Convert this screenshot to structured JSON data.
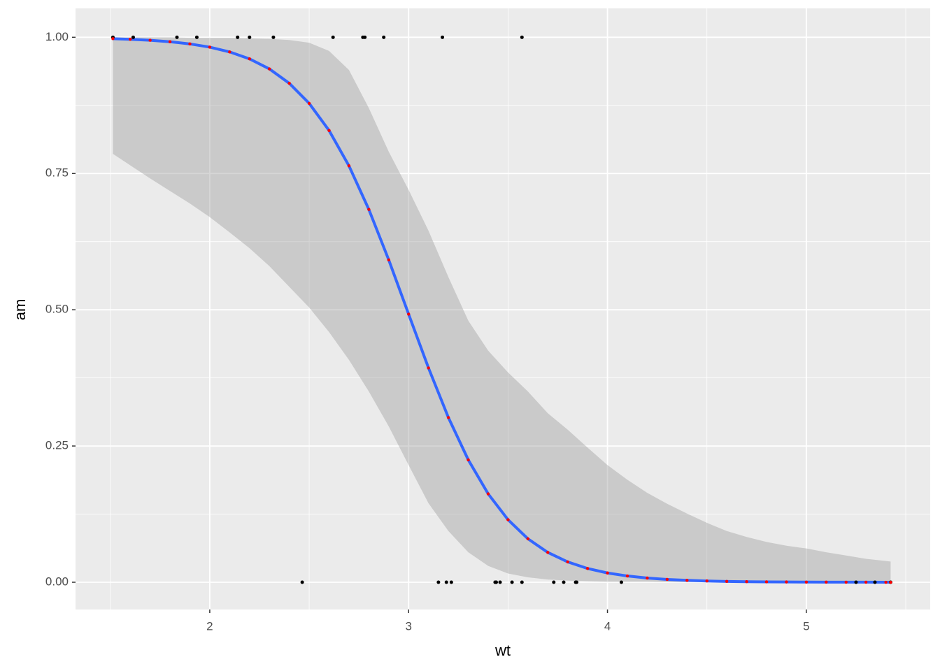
{
  "chart_data": {
    "type": "logistic",
    "x_label": "wt",
    "y_label": "am",
    "xlim": [
      1.325,
      5.623
    ],
    "ylim": [
      -0.05,
      1.053
    ],
    "xticks": [
      2,
      3,
      4,
      5
    ],
    "yticks": [
      {
        "value": 0,
        "label": "0.00"
      },
      {
        "value": 0.25,
        "label": "0.25"
      },
      {
        "value": 0.5,
        "label": "0.50"
      },
      {
        "value": 0.75,
        "label": "0.75"
      },
      {
        "value": 1,
        "label": "1.00"
      }
    ],
    "xminor": [
      1.5,
      2.5,
      3.5,
      4.5,
      5.5
    ],
    "yminor": [
      0.125,
      0.375,
      0.625,
      0.875
    ],
    "grid": true,
    "background": "#EBEBEB",
    "x": [
      1.513,
      1.6,
      1.7,
      1.8,
      1.9,
      2.0,
      2.1,
      2.2,
      2.3,
      2.4,
      2.5,
      2.6,
      2.7,
      2.8,
      2.9,
      3.0,
      3.1,
      3.2,
      3.3,
      3.4,
      3.5,
      3.6,
      3.7,
      3.8,
      3.9,
      4.0,
      4.1,
      4.2,
      4.3,
      4.4,
      4.5,
      4.6,
      4.7,
      4.8,
      4.9,
      5.0,
      5.1,
      5.2,
      5.3,
      5.4,
      5.424
    ],
    "ribbon": {
      "color": "#999999",
      "lower": [
        0.786,
        0.765,
        0.741,
        0.718,
        0.695,
        0.67,
        0.642,
        0.613,
        0.58,
        0.542,
        0.504,
        0.459,
        0.408,
        0.35,
        0.286,
        0.215,
        0.145,
        0.094,
        0.055,
        0.03,
        0.016,
        0.009,
        0.005,
        0.003,
        0.002,
        0.001,
        0.001,
        0.001,
        0,
        0,
        0,
        0,
        0,
        0,
        0,
        0,
        0,
        0,
        0,
        0,
        0
      ],
      "upper": [
        1.0,
        1.0,
        1.0,
        1.0,
        0.999,
        0.999,
        0.999,
        0.998,
        0.997,
        0.995,
        0.99,
        0.975,
        0.94,
        0.87,
        0.79,
        0.72,
        0.645,
        0.56,
        0.48,
        0.425,
        0.385,
        0.35,
        0.31,
        0.28,
        0.247,
        0.215,
        0.188,
        0.164,
        0.144,
        0.126,
        0.109,
        0.094,
        0.083,
        0.074,
        0.067,
        0.062,
        0.055,
        0.049,
        0.043,
        0.039,
        0.038
      ]
    },
    "fit": {
      "color": "#3366FF",
      "point_color": "#FF0000",
      "values": [
        0.9974,
        0.9963,
        0.9945,
        0.9918,
        0.9878,
        0.9819,
        0.9731,
        0.9604,
        0.9419,
        0.9155,
        0.8787,
        0.8289,
        0.7641,
        0.6841,
        0.5915,
        0.492,
        0.3932,
        0.3022,
        0.2246,
        0.1622,
        0.1147,
        0.0797,
        0.0547,
        0.0373,
        0.0252,
        0.017,
        0.0115,
        0.0077,
        0.0052,
        0.0035,
        0.0023,
        0.0015,
        0.001,
        0.0007,
        0.0005,
        0.0003,
        0.0002,
        0.0001,
        0.0001,
        0,
        0
      ]
    },
    "points": {
      "color": "#000000",
      "x": [
        2.62,
        2.875,
        2.32,
        3.215,
        3.44,
        3.46,
        3.57,
        3.19,
        3.15,
        3.44,
        3.44,
        4.07,
        3.73,
        3.78,
        5.25,
        5.424,
        5.345,
        2.2,
        1.615,
        1.835,
        2.465,
        3.52,
        3.435,
        3.84,
        3.845,
        1.935,
        2.14,
        1.513,
        3.17,
        2.77,
        3.57,
        2.78
      ],
      "y": [
        1,
        1,
        1,
        0,
        0,
        0,
        0,
        0,
        0,
        0,
        0,
        0,
        0,
        0,
        0,
        0,
        0,
        1,
        1,
        1,
        0,
        0,
        0,
        0,
        0,
        1,
        1,
        1,
        1,
        1,
        1,
        1
      ]
    }
  }
}
